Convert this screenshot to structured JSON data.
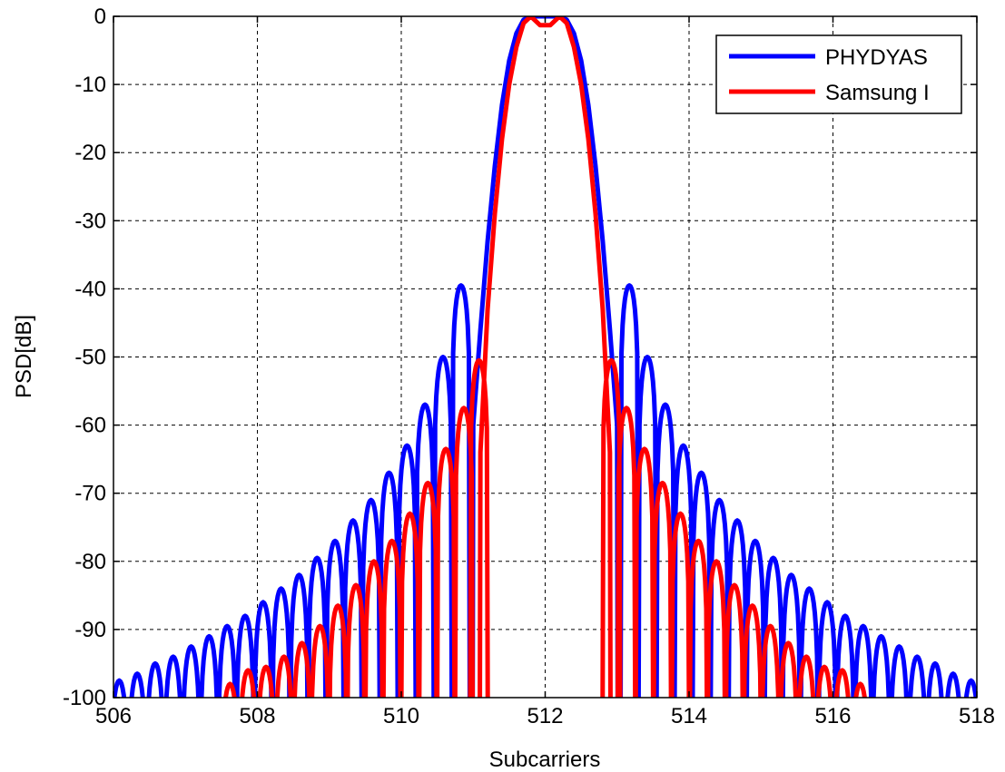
{
  "chart_data": {
    "type": "line",
    "title": "",
    "xlabel": "Subcarriers",
    "ylabel": "PSD[dB]",
    "xlim": [
      506,
      518
    ],
    "ylim": [
      -100,
      0
    ],
    "xticks": [
      506,
      508,
      510,
      512,
      514,
      516,
      518
    ],
    "yticks": [
      0,
      -10,
      -20,
      -30,
      -40,
      -50,
      -60,
      -70,
      -80,
      -90,
      -100
    ],
    "grid": true,
    "legend_position": "top-right",
    "series": [
      {
        "name": "PHYDYAS",
        "color": "#0000ff",
        "main_lobe": [
          [
            511.0,
            -60
          ],
          [
            511.1,
            -46
          ],
          [
            511.2,
            -33
          ],
          [
            511.3,
            -22
          ],
          [
            511.4,
            -13
          ],
          [
            511.5,
            -6.5
          ],
          [
            511.6,
            -2.5
          ],
          [
            511.7,
            -0.5
          ],
          [
            511.8,
            0
          ],
          [
            512.0,
            0
          ],
          [
            512.2,
            0
          ],
          [
            512.3,
            -0.5
          ],
          [
            512.4,
            -2.5
          ],
          [
            512.5,
            -6.5
          ],
          [
            512.6,
            -13
          ],
          [
            512.7,
            -22
          ],
          [
            512.8,
            -33
          ],
          [
            512.9,
            -46
          ],
          [
            513.0,
            -60
          ]
        ],
        "side_lobe_peaks": [
          [
            506.08,
            -97.5
          ],
          [
            506.33,
            -96.5
          ],
          [
            506.58,
            -95
          ],
          [
            506.83,
            -94
          ],
          [
            507.08,
            -92.5
          ],
          [
            507.33,
            -91
          ],
          [
            507.58,
            -89.5
          ],
          [
            507.83,
            -88
          ],
          [
            508.08,
            -86
          ],
          [
            508.33,
            -84
          ],
          [
            508.58,
            -82
          ],
          [
            508.83,
            -79.5
          ],
          [
            509.08,
            -77
          ],
          [
            509.33,
            -74
          ],
          [
            509.58,
            -71
          ],
          [
            509.83,
            -67
          ],
          [
            510.08,
            -63
          ],
          [
            510.33,
            -57
          ],
          [
            510.58,
            -50
          ],
          [
            510.83,
            -39.5
          ],
          [
            513.17,
            -39.5
          ],
          [
            513.42,
            -50
          ],
          [
            513.67,
            -57
          ],
          [
            513.92,
            -63
          ],
          [
            514.17,
            -67
          ],
          [
            514.42,
            -71
          ],
          [
            514.67,
            -74
          ],
          [
            514.92,
            -77
          ],
          [
            515.17,
            -79.5
          ],
          [
            515.42,
            -82
          ],
          [
            515.67,
            -84
          ],
          [
            515.92,
            -86
          ],
          [
            516.17,
            -88
          ],
          [
            516.42,
            -89.5
          ],
          [
            516.67,
            -91
          ],
          [
            516.92,
            -92.5
          ],
          [
            517.17,
            -94
          ],
          [
            517.42,
            -95
          ],
          [
            517.67,
            -96.5
          ],
          [
            517.92,
            -97.5
          ]
        ]
      },
      {
        "name": "Samsung I",
        "color": "#ff0000",
        "main_lobe": [
          [
            511.1,
            -64
          ],
          [
            511.2,
            -43
          ],
          [
            511.3,
            -29
          ],
          [
            511.4,
            -18
          ],
          [
            511.5,
            -10
          ],
          [
            511.6,
            -4.5
          ],
          [
            511.7,
            -1
          ],
          [
            511.8,
            0
          ],
          [
            511.93,
            -1.3
          ],
          [
            512.07,
            -1.3
          ],
          [
            512.2,
            0
          ],
          [
            512.3,
            -1
          ],
          [
            512.4,
            -4.5
          ],
          [
            512.5,
            -10
          ],
          [
            512.6,
            -18
          ],
          [
            512.7,
            -29
          ],
          [
            512.8,
            -43
          ],
          [
            512.9,
            -64
          ]
        ],
        "side_lobe_peaks": [
          [
            507.62,
            -98
          ],
          [
            507.87,
            -96
          ],
          [
            508.12,
            -95.5
          ],
          [
            508.37,
            -94
          ],
          [
            508.62,
            -92
          ],
          [
            508.87,
            -89.5
          ],
          [
            509.12,
            -86.5
          ],
          [
            509.37,
            -83.5
          ],
          [
            509.62,
            -80
          ],
          [
            509.87,
            -77
          ],
          [
            510.12,
            -73
          ],
          [
            510.37,
            -68.5
          ],
          [
            510.62,
            -63.5
          ],
          [
            510.87,
            -57.5
          ],
          [
            511.08,
            -50.5
          ],
          [
            512.92,
            -50.5
          ],
          [
            513.13,
            -57.5
          ],
          [
            513.38,
            -63.5
          ],
          [
            513.63,
            -68.5
          ],
          [
            513.88,
            -73
          ],
          [
            514.13,
            -77
          ],
          [
            514.38,
            -80
          ],
          [
            514.63,
            -83.5
          ],
          [
            514.88,
            -86.5
          ],
          [
            515.13,
            -89.5
          ],
          [
            515.38,
            -92
          ],
          [
            515.63,
            -94
          ],
          [
            515.88,
            -95.5
          ],
          [
            516.13,
            -96
          ],
          [
            516.38,
            -98
          ]
        ]
      }
    ]
  }
}
